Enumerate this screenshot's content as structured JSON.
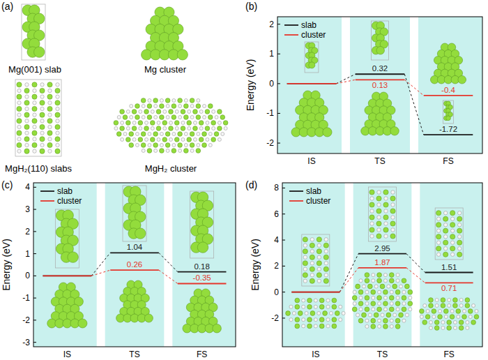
{
  "structures": {
    "panel_label": "(a)",
    "items": [
      "Mg(001) slab",
      "Mg cluster",
      "MgH₂(110) slabs",
      "MgH₂ cluster"
    ]
  },
  "chart_data": [
    {
      "type": "line",
      "title": "(b)",
      "y_label": "Energy (eV)",
      "categories": [
        "IS",
        "TS",
        "FS"
      ],
      "series": [
        {
          "name": "slab",
          "color": "#1a1a1a",
          "values": [
            0,
            0.32,
            -1.72
          ],
          "value_labels": [
            null,
            "0.32",
            "-1.72"
          ]
        },
        {
          "name": "cluster",
          "color": "#e5362c",
          "values": [
            0,
            0.13,
            -0.4
          ],
          "value_labels": [
            null,
            "0.13",
            "-0.4"
          ]
        }
      ],
      "ylim": [
        -2.35,
        2.25
      ],
      "yticks": [
        -2,
        -1,
        0,
        1,
        2
      ],
      "legend": "upper left",
      "data_labels": true
    },
    {
      "type": "line",
      "title": "(c)",
      "y_label": "Energy (eV)",
      "categories": [
        "IS",
        "TS",
        "FS"
      ],
      "series": [
        {
          "name": "slab",
          "color": "#1a1a1a",
          "values": [
            0,
            1.04,
            0.18
          ],
          "value_labels": [
            null,
            "1.04",
            "0.18"
          ]
        },
        {
          "name": "cluster",
          "color": "#e5362c",
          "values": [
            0,
            0.26,
            -0.35
          ],
          "value_labels": [
            null,
            "0.26",
            "-0.35"
          ]
        }
      ],
      "ylim": [
        -3.2,
        4.2
      ],
      "yticks": [
        -3,
        -2,
        -1,
        0,
        1,
        2,
        3,
        4
      ],
      "legend": "upper left",
      "data_labels": true
    },
    {
      "type": "line",
      "title": "(d)",
      "y_label": "Energy (eV)",
      "categories": [
        "IS",
        "TS",
        "FS"
      ],
      "series": [
        {
          "name": "slab",
          "color": "#1a1a1a",
          "values": [
            0,
            2.95,
            1.51
          ],
          "value_labels": [
            null,
            "2.95",
            "1.51"
          ]
        },
        {
          "name": "cluster",
          "color": "#e5362c",
          "values": [
            0,
            1.87,
            0.71
          ],
          "value_labels": [
            null,
            "1.87",
            "0.71"
          ]
        }
      ],
      "ylim": [
        -4.2,
        8.4
      ],
      "yticks": [
        -2,
        0,
        2,
        4,
        6,
        8
      ],
      "legend": "upper left",
      "data_labels": true
    }
  ]
}
